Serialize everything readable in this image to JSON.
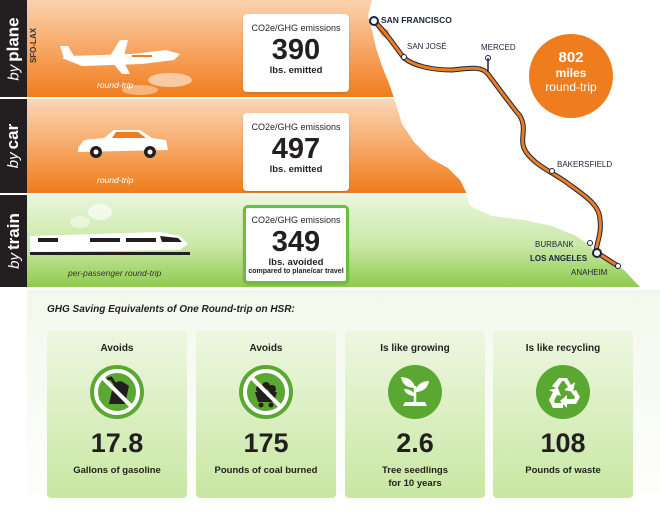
{
  "modes": {
    "plane": {
      "label_prefix": "by",
      "label": "plane",
      "route_code": "SFO-LAX",
      "caption": "round-trip",
      "emissions_title": "CO2e/GHG emissions",
      "value": "390",
      "unit": "lbs. emitted"
    },
    "car": {
      "label_prefix": "by",
      "label": "car",
      "caption": "round-trip",
      "emissions_title": "CO2e/GHG emissions",
      "value": "497",
      "unit": "lbs. emitted"
    },
    "train": {
      "label_prefix": "by",
      "label": "train",
      "caption": "per-passenger round-trip",
      "emissions_title": "CO2e/GHG emissions",
      "value": "349",
      "unit": "lbs. avoided",
      "subnote": "compared to plane/car travel"
    }
  },
  "map": {
    "cities": {
      "san_francisco": "SAN FRANCISCO",
      "san_jose": "SAN JOSÉ",
      "merced": "MERCED",
      "bakersfield": "BAKERSFIELD",
      "burbank": "BURBANK",
      "los_angeles": "LOS ANGELES",
      "anaheim": "ANAHEIM"
    },
    "route_color": "#ef7d1d",
    "distance": {
      "value": "802",
      "unit": "miles",
      "note": "round-trip"
    }
  },
  "equivalents": {
    "heading": "GHG Saving Equivalents of One Round-trip on HSR:",
    "items": [
      {
        "prefix": "Avoids",
        "value": "17.8",
        "label": "Gallons of gasoline",
        "icon": "gas-pump-prohibited-icon"
      },
      {
        "prefix": "Avoids",
        "value": "175",
        "label": "Pounds of coal burned",
        "icon": "coal-cart-prohibited-icon"
      },
      {
        "prefix": "Is like growing",
        "value": "2.6",
        "label": "Tree seedlings\nfor 10 years",
        "icon": "seedling-icon"
      },
      {
        "prefix": "Is like recycling",
        "value": "108",
        "label": "Pounds of waste",
        "icon": "recycle-icon"
      }
    ]
  },
  "colors": {
    "orange": "#ef7d1d",
    "green": "#6ebd3c",
    "dark": "#231f20"
  }
}
